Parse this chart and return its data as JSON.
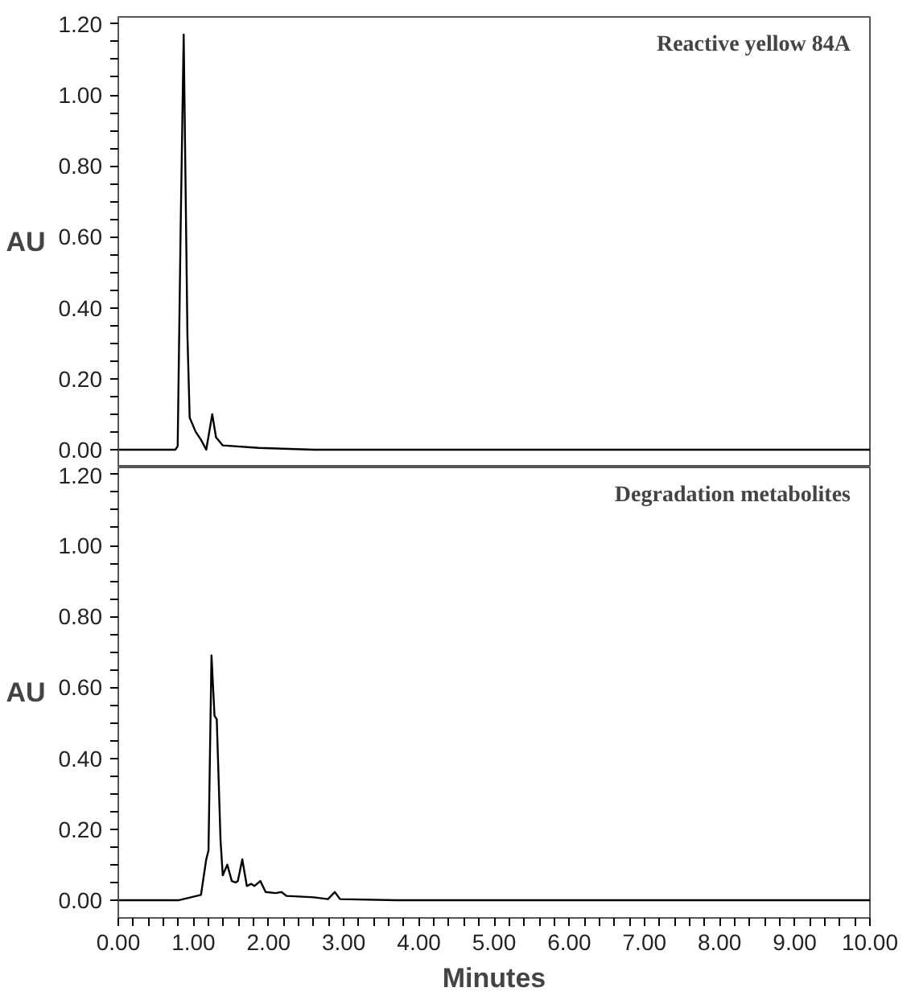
{
  "chart_data": [
    {
      "type": "line",
      "ylabel": "AU",
      "annotations": [
        "Reactive yellow 84A"
      ],
      "tick_labels": "y",
      "grid": false,
      "line_style": "solid",
      "marker": "none",
      "xlim": [
        0,
        10
      ],
      "ylim": [
        -0.05,
        1.22
      ],
      "yticks": [
        {
          "value": 0,
          "label": "0.00"
        },
        {
          "value": 0.05,
          "label": null
        },
        {
          "value": 0.1,
          "label": null
        },
        {
          "value": 0.15,
          "label": null
        },
        {
          "value": 0.2,
          "label": "0.20"
        },
        {
          "value": 0.25,
          "label": null
        },
        {
          "value": 0.3,
          "label": null
        },
        {
          "value": 0.35,
          "label": null
        },
        {
          "value": 0.4,
          "label": "0.40"
        },
        {
          "value": 0.45,
          "label": null
        },
        {
          "value": 0.5,
          "label": null
        },
        {
          "value": 0.55,
          "label": null
        },
        {
          "value": 0.6,
          "label": "0.60"
        },
        {
          "value": 0.65,
          "label": null
        },
        {
          "value": 0.7,
          "label": null
        },
        {
          "value": 0.75,
          "label": null
        },
        {
          "value": 0.8,
          "label": "0.80"
        },
        {
          "value": 0.85,
          "label": null
        },
        {
          "value": 0.9,
          "label": null
        },
        {
          "value": 0.95,
          "label": null
        },
        {
          "value": 1.0,
          "label": "1.00"
        },
        {
          "value": 1.05,
          "label": null
        },
        {
          "value": 1.1,
          "label": null
        },
        {
          "value": 1.15,
          "label": null
        },
        {
          "value": 1.2,
          "label": "1.20"
        }
      ],
      "series": [
        {
          "color": "#000000",
          "x": [
            0,
            0.5,
            0.76,
            0.79,
            0.83,
            0.87,
            0.92,
            0.95,
            1.03,
            1.1,
            1.17,
            1.25,
            1.3,
            1.39,
            1.87,
            2.6,
            5,
            10
          ],
          "values": [
            0,
            0,
            0,
            0.01,
            0.63,
            1.17,
            0.32,
            0.09,
            0.05,
            0.028,
            0,
            0.1,
            0.035,
            0.012,
            0.005,
            0,
            0,
            0
          ]
        }
      ]
    },
    {
      "type": "line",
      "ylabel": "AU",
      "xlabel": "Minutes",
      "annotations": [
        "Degradation metabolites"
      ],
      "grid": false,
      "line_style": "solid",
      "marker": "none",
      "xlim": [
        0,
        10
      ],
      "ylim": [
        -0.05,
        1.22
      ],
      "xticks": [
        {
          "value": 0,
          "label": "0.00"
        },
        {
          "value": 0.2,
          "label": null
        },
        {
          "value": 0.4,
          "label": null
        },
        {
          "value": 0.6,
          "label": null
        },
        {
          "value": 0.8,
          "label": null
        },
        {
          "value": 1,
          "label": "1.00"
        },
        {
          "value": 1.2,
          "label": null
        },
        {
          "value": 1.4,
          "label": null
        },
        {
          "value": 1.6,
          "label": null
        },
        {
          "value": 1.8,
          "label": null
        },
        {
          "value": 2,
          "label": "2.00"
        },
        {
          "value": 2.2,
          "label": null
        },
        {
          "value": 2.4,
          "label": null
        },
        {
          "value": 2.6,
          "label": null
        },
        {
          "value": 2.8,
          "label": null
        },
        {
          "value": 3,
          "label": "3.00"
        },
        {
          "value": 3.2,
          "label": null
        },
        {
          "value": 3.4,
          "label": null
        },
        {
          "value": 3.6,
          "label": null
        },
        {
          "value": 3.8,
          "label": null
        },
        {
          "value": 4,
          "label": "4.00"
        },
        {
          "value": 4.2,
          "label": null
        },
        {
          "value": 4.4,
          "label": null
        },
        {
          "value": 4.6,
          "label": null
        },
        {
          "value": 4.8,
          "label": null
        },
        {
          "value": 5,
          "label": "5.00"
        },
        {
          "value": 5.2,
          "label": null
        },
        {
          "value": 5.4,
          "label": null
        },
        {
          "value": 5.6,
          "label": null
        },
        {
          "value": 5.8,
          "label": null
        },
        {
          "value": 6,
          "label": "6.00"
        },
        {
          "value": 6.2,
          "label": null
        },
        {
          "value": 6.4,
          "label": null
        },
        {
          "value": 6.6,
          "label": null
        },
        {
          "value": 6.8,
          "label": null
        },
        {
          "value": 7,
          "label": "7.00"
        },
        {
          "value": 7.2,
          "label": null
        },
        {
          "value": 7.4,
          "label": null
        },
        {
          "value": 7.6,
          "label": null
        },
        {
          "value": 7.8,
          "label": null
        },
        {
          "value": 8,
          "label": "8.00"
        },
        {
          "value": 8.2,
          "label": null
        },
        {
          "value": 8.4,
          "label": null
        },
        {
          "value": 8.6,
          "label": null
        },
        {
          "value": 8.8,
          "label": null
        },
        {
          "value": 9,
          "label": "9.00"
        },
        {
          "value": 9.2,
          "label": null
        },
        {
          "value": 9.4,
          "label": null
        },
        {
          "value": 9.6,
          "label": null
        },
        {
          "value": 9.8,
          "label": null
        },
        {
          "value": 10,
          "label": "10.00"
        }
      ],
      "yticks": [
        {
          "value": 0,
          "label": "0.00"
        },
        {
          "value": 0.05,
          "label": null
        },
        {
          "value": 0.1,
          "label": null
        },
        {
          "value": 0.15,
          "label": null
        },
        {
          "value": 0.2,
          "label": "0.20"
        },
        {
          "value": 0.25,
          "label": null
        },
        {
          "value": 0.3,
          "label": null
        },
        {
          "value": 0.35,
          "label": null
        },
        {
          "value": 0.4,
          "label": "0.40"
        },
        {
          "value": 0.45,
          "label": null
        },
        {
          "value": 0.5,
          "label": null
        },
        {
          "value": 0.55,
          "label": null
        },
        {
          "value": 0.6,
          "label": "0.60"
        },
        {
          "value": 0.65,
          "label": null
        },
        {
          "value": 0.7,
          "label": null
        },
        {
          "value": 0.75,
          "label": null
        },
        {
          "value": 0.8,
          "label": "0.80"
        },
        {
          "value": 0.85,
          "label": null
        },
        {
          "value": 0.9,
          "label": null
        },
        {
          "value": 0.95,
          "label": null
        },
        {
          "value": 1.0,
          "label": "1.00"
        },
        {
          "value": 1.05,
          "label": null
        },
        {
          "value": 1.1,
          "label": null
        },
        {
          "value": 1.15,
          "label": null
        },
        {
          "value": 1.2,
          "label": "1.20"
        }
      ],
      "series": [
        {
          "color": "#000000",
          "x": [
            0,
            0.5,
            0.81,
            1.1,
            1.17,
            1.2,
            1.24,
            1.28,
            1.31,
            1.36,
            1.39,
            1.45,
            1.51,
            1.56,
            1.59,
            1.65,
            1.71,
            1.77,
            1.81,
            1.89,
            1.96,
            2.09,
            2.17,
            2.24,
            2.6,
            2.79,
            2.88,
            2.95,
            3.7,
            10
          ],
          "values": [
            0,
            0,
            0,
            0.015,
            0.115,
            0.14,
            0.69,
            0.52,
            0.51,
            0.17,
            0.07,
            0.1,
            0.054,
            0.05,
            0.054,
            0.115,
            0.04,
            0.046,
            0.04,
            0.054,
            0.023,
            0.02,
            0.023,
            0.012,
            0.008,
            0.003,
            0.023,
            0.003,
            0,
            0
          ]
        }
      ]
    }
  ]
}
